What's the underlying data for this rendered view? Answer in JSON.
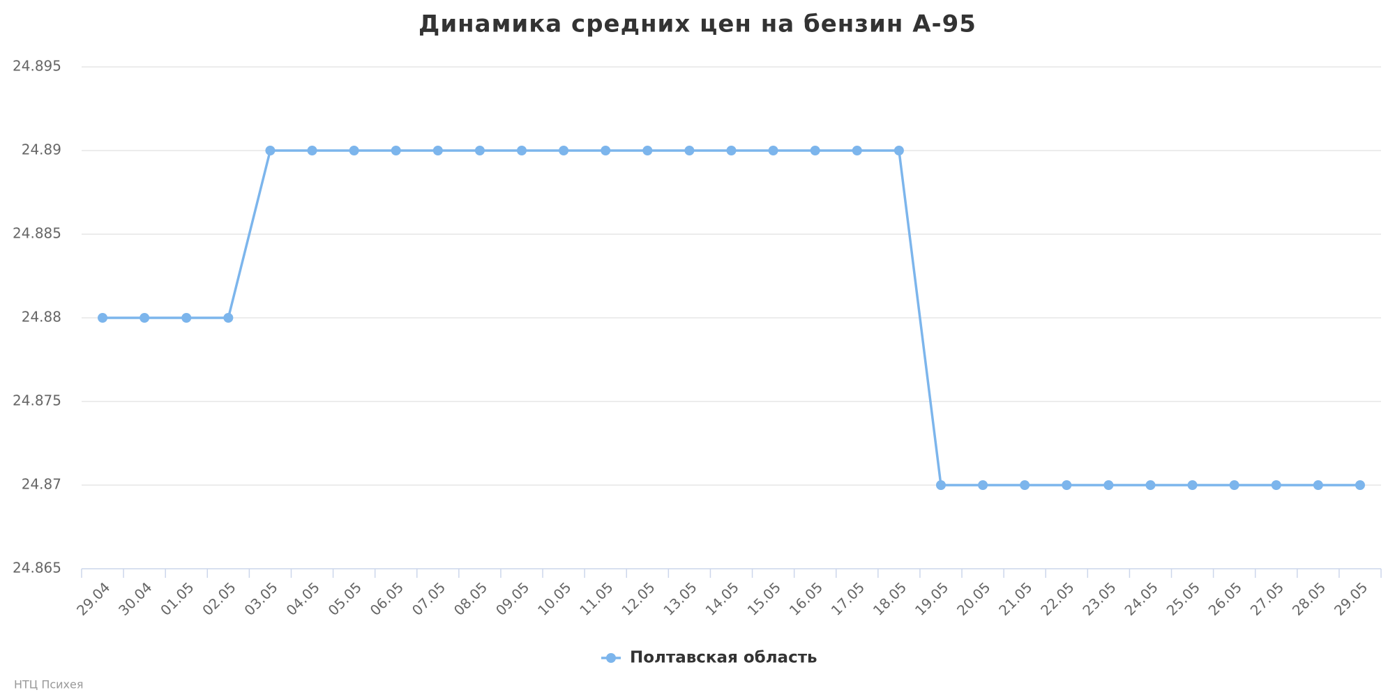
{
  "chart_data": {
    "type": "line",
    "title": "Динамика средних цен на бензин А-95",
    "categories": [
      "29.04",
      "30.04",
      "01.05",
      "02.05",
      "03.05",
      "04.05",
      "05.05",
      "06.05",
      "07.05",
      "08.05",
      "09.05",
      "10.05",
      "11.05",
      "12.05",
      "13.05",
      "14.05",
      "15.05",
      "16.05",
      "17.05",
      "18.05",
      "19.05",
      "20.05",
      "21.05",
      "22.05",
      "23.05",
      "24.05",
      "25.05",
      "26.05",
      "27.05",
      "28.05",
      "29.05"
    ],
    "series": [
      {
        "name": "Полтавская область",
        "color": "#7cb5ec",
        "values": [
          24.88,
          24.88,
          24.88,
          24.88,
          24.89,
          24.89,
          24.89,
          24.89,
          24.89,
          24.89,
          24.89,
          24.89,
          24.89,
          24.89,
          24.89,
          24.89,
          24.89,
          24.89,
          24.89,
          24.89,
          24.87,
          24.87,
          24.87,
          24.87,
          24.87,
          24.87,
          24.87,
          24.87,
          24.87,
          24.87,
          24.87
        ]
      }
    ],
    "ylim": [
      24.865,
      24.895
    ],
    "yticks": [
      24.865,
      24.87,
      24.875,
      24.88,
      24.885,
      24.89,
      24.895
    ],
    "grid": true,
    "legend": "bottom",
    "credits": "НТЦ Психея"
  }
}
